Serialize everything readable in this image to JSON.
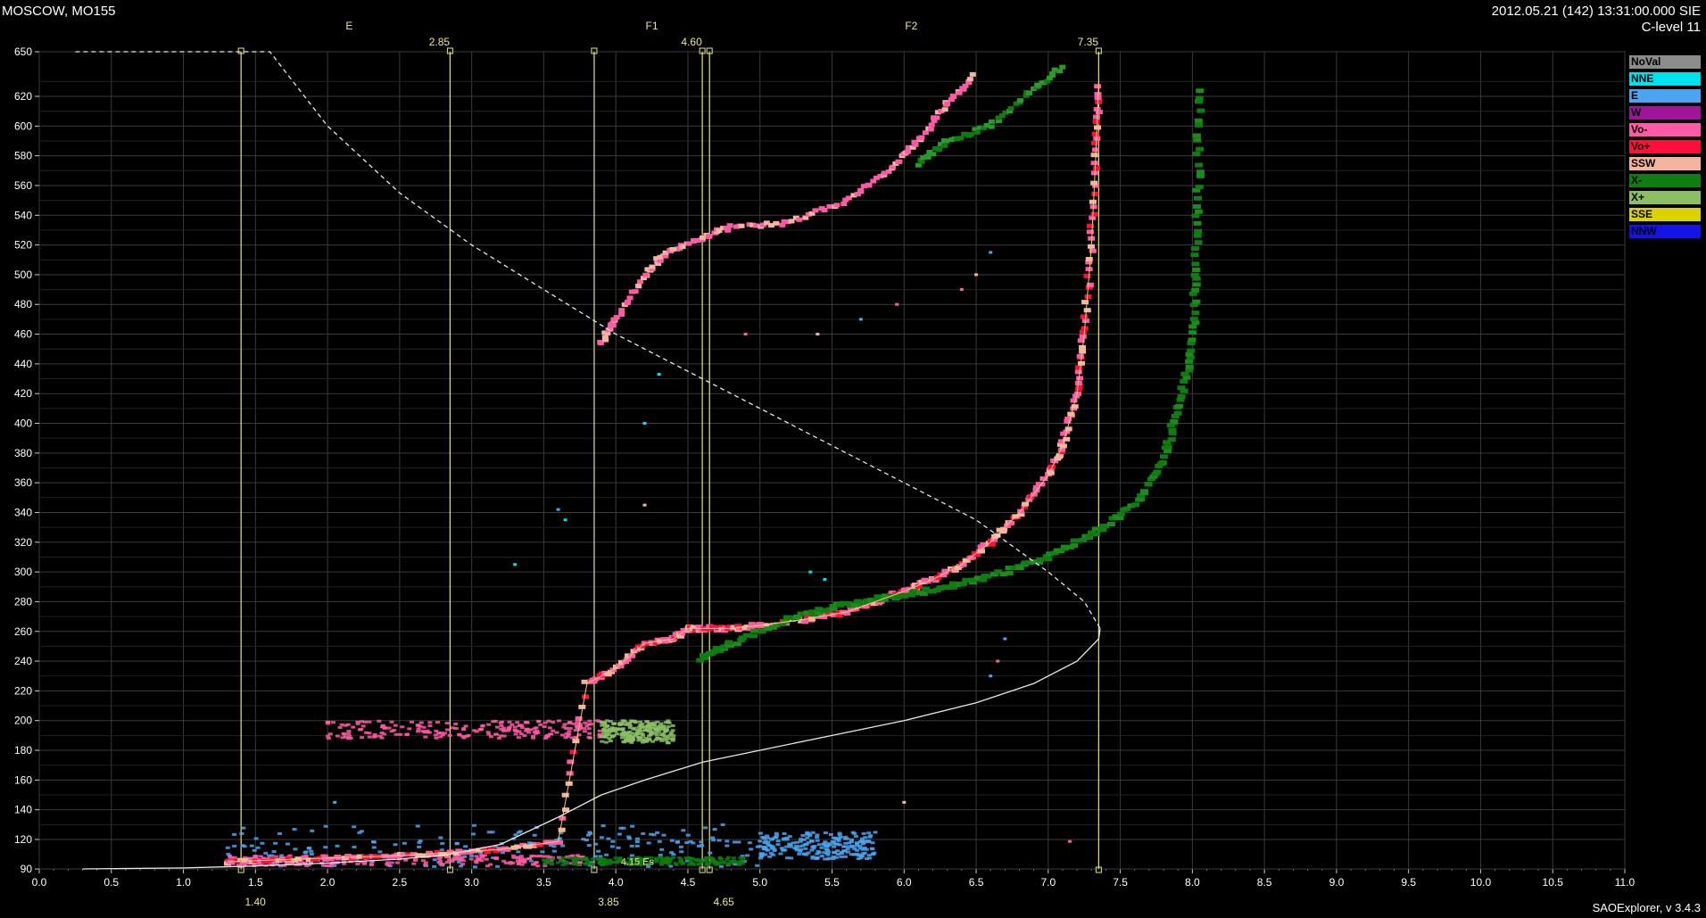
{
  "header": {
    "station": "MOSCOW, MO155",
    "datetime": "2012.05.21 (142) 13:31:00.000 SIE",
    "clevel": "C-level 11"
  },
  "footer": {
    "software": "SAOExplorer, v 3.4.3"
  },
  "legend": [
    {
      "label": "NoVal",
      "color": "#8c8c8c"
    },
    {
      "label": "NNE",
      "color": "#00e1f0"
    },
    {
      "label": "E",
      "color": "#4ba5f0"
    },
    {
      "label": "W",
      "color": "#a0149b"
    },
    {
      "label": "Vo-",
      "color": "#ff5aa5"
    },
    {
      "label": "Vo+",
      "color": "#ff0f3c"
    },
    {
      "label": "SSW",
      "color": "#f5b4a0"
    },
    {
      "label": "X-",
      "color": "#0f7d0f"
    },
    {
      "label": "X+",
      "color": "#8cbe64"
    },
    {
      "label": "SSE",
      "color": "#dcd200"
    },
    {
      "label": "NNW",
      "color": "#1414e6"
    }
  ],
  "chart_data": {
    "type": "scatter",
    "xlim": [
      0.0,
      11.0
    ],
    "ylim": [
      90,
      650
    ],
    "x_ticks": [
      "0.0",
      "0.5",
      "1.0",
      "1.5",
      "2.0",
      "2.5",
      "3.0",
      "3.5",
      "4.0",
      "4.5",
      "5.0",
      "5.5",
      "6.0",
      "6.5",
      "7.0",
      "7.5",
      "8.0",
      "8.5",
      "9.0",
      "9.5",
      "10.0",
      "10.5",
      "11.0"
    ],
    "y_ticks": [
      "90",
      "120",
      "140",
      "160",
      "180",
      "200",
      "220",
      "240",
      "260",
      "280",
      "300",
      "320",
      "340",
      "360",
      "380",
      "400",
      "420",
      "440",
      "460",
      "480",
      "500",
      "520",
      "540",
      "560",
      "580",
      "600",
      "620",
      "650"
    ],
    "grid": true,
    "layer_labels": [
      {
        "text": "E",
        "x": 2.15
      },
      {
        "text": "F1",
        "x": 4.25
      },
      {
        "text": "F2",
        "x": 6.05
      }
    ],
    "markers": [
      {
        "x": 1.4,
        "top_label": "",
        "bottom_label": "1.40"
      },
      {
        "x": 2.85,
        "top_label": "2.85",
        "bottom_label": ""
      },
      {
        "x": 3.85,
        "top_label": "",
        "bottom_label": "3.85"
      },
      {
        "x": 4.6,
        "top_label": "4.60",
        "bottom_label": ""
      },
      {
        "x": 4.65,
        "top_label": "",
        "bottom_label": "4.65"
      },
      {
        "x": 7.35,
        "top_label": "7.35",
        "bottom_label": ""
      }
    ],
    "es_label": {
      "text": "4.15  Es",
      "x": 4.15,
      "y": 94
    },
    "o_trace": [
      [
        1.3,
        97
      ],
      [
        1.6,
        99
      ],
      [
        2.0,
        101
      ],
      [
        2.4,
        103
      ],
      [
        2.8,
        106
      ],
      [
        3.2,
        110
      ],
      [
        3.6,
        118
      ],
      [
        3.8,
        225
      ],
      [
        4.0,
        235
      ],
      [
        4.2,
        252
      ],
      [
        4.4,
        255
      ],
      [
        4.5,
        262
      ],
      [
        4.6,
        262
      ],
      [
        4.8,
        262
      ],
      [
        5.0,
        264
      ],
      [
        5.3,
        268
      ],
      [
        5.6,
        273
      ],
      [
        5.8,
        280
      ],
      [
        6.0,
        287
      ],
      [
        6.2,
        295
      ],
      [
        6.4,
        305
      ],
      [
        6.6,
        320
      ],
      [
        6.8,
        340
      ],
      [
        7.0,
        365
      ],
      [
        7.1,
        385
      ],
      [
        7.2,
        420
      ],
      [
        7.25,
        460
      ],
      [
        7.3,
        520
      ],
      [
        7.33,
        580
      ],
      [
        7.35,
        630
      ]
    ],
    "x_trace": [
      [
        4.6,
        242
      ],
      [
        4.8,
        252
      ],
      [
        5.2,
        268
      ],
      [
        5.5,
        276
      ],
      [
        5.8,
        282
      ],
      [
        6.1,
        286
      ],
      [
        6.4,
        292
      ],
      [
        6.7,
        300
      ],
      [
        7.0,
        310
      ],
      [
        7.3,
        325
      ],
      [
        7.6,
        345
      ],
      [
        7.8,
        375
      ],
      [
        7.9,
        410
      ],
      [
        8.0,
        450
      ],
      [
        8.02,
        500
      ],
      [
        8.04,
        560
      ],
      [
        8.05,
        630
      ]
    ],
    "high_o_trace": [
      [
        3.9,
        455
      ],
      [
        4.0,
        470
      ],
      [
        4.2,
        500
      ],
      [
        4.35,
        515
      ],
      [
        4.6,
        525
      ],
      [
        4.8,
        532
      ],
      [
        5.2,
        535
      ],
      [
        5.6,
        550
      ],
      [
        5.9,
        570
      ],
      [
        6.1,
        590
      ],
      [
        6.3,
        615
      ],
      [
        6.5,
        635
      ]
    ],
    "high_x_trace": [
      [
        6.1,
        575
      ],
      [
        6.3,
        590
      ],
      [
        6.6,
        600
      ],
      [
        6.9,
        625
      ],
      [
        7.1,
        640
      ]
    ],
    "es_blobs": [
      {
        "x": [
          2.0,
          3.9
        ],
        "y": [
          188,
          200
        ],
        "color": "#ff5aa5"
      },
      {
        "x": [
          1.3,
          5.0
        ],
        "y": [
          92,
          130
        ],
        "color": "#4ba5f0"
      },
      {
        "x": [
          5.0,
          5.8
        ],
        "y": [
          100,
          125
        ],
        "color": "#4ba5f0"
      },
      {
        "x": [
          1.3,
          3.8
        ],
        "y": [
          93,
          104
        ],
        "color": "#ff5aa5"
      },
      {
        "x": [
          3.5,
          4.9
        ],
        "y": [
          94,
          102
        ],
        "color": "#0f7d0f"
      },
      {
        "x": [
          3.9,
          4.4
        ],
        "y": [
          185,
          200
        ],
        "color": "#8cbe64"
      }
    ],
    "scattered": [
      {
        "x": 3.6,
        "y": 342
      },
      {
        "x": 3.65,
        "y": 335
      },
      {
        "x": 3.3,
        "y": 305
      },
      {
        "x": 5.35,
        "y": 300
      },
      {
        "x": 5.45,
        "y": 295
      },
      {
        "x": 6.7,
        "y": 255
      },
      {
        "x": 6.65,
        "y": 240
      },
      {
        "x": 6.6,
        "y": 230
      },
      {
        "x": 4.2,
        "y": 400
      },
      {
        "x": 4.3,
        "y": 433
      },
      {
        "x": 4.2,
        "y": 345
      },
      {
        "x": 6.4,
        "y": 490
      },
      {
        "x": 6.5,
        "y": 500
      },
      {
        "x": 5.4,
        "y": 460
      },
      {
        "x": 5.7,
        "y": 470
      },
      {
        "x": 4.9,
        "y": 460
      },
      {
        "x": 5.95,
        "y": 480
      },
      {
        "x": 2.05,
        "y": 145
      },
      {
        "x": 6.6,
        "y": 515
      },
      {
        "x": 6.0,
        "y": 145
      },
      {
        "x": 7.15,
        "y": 118
      }
    ],
    "model_profile": [
      [
        0.3,
        90
      ],
      [
        1.0,
        91
      ],
      [
        1.5,
        93
      ],
      [
        2.0,
        96
      ],
      [
        2.5,
        100
      ],
      [
        2.85,
        105
      ],
      [
        3.2,
        115
      ],
      [
        3.6,
        135
      ],
      [
        3.9,
        150
      ],
      [
        4.2,
        160
      ],
      [
        4.6,
        172
      ],
      [
        5.0,
        180
      ],
      [
        5.5,
        190
      ],
      [
        6.0,
        200
      ],
      [
        6.5,
        212
      ],
      [
        6.9,
        225
      ],
      [
        7.2,
        240
      ],
      [
        7.35,
        255
      ],
      [
        7.36,
        262
      ]
    ],
    "model_profile_dashed": [
      [
        0.25,
        650
      ],
      [
        1.6,
        650
      ],
      [
        2.0,
        600
      ],
      [
        2.5,
        555
      ],
      [
        3.0,
        520
      ],
      [
        3.5,
        490
      ],
      [
        4.0,
        460
      ],
      [
        4.5,
        435
      ],
      [
        5.0,
        410
      ],
      [
        5.5,
        385
      ],
      [
        6.0,
        360
      ],
      [
        6.5,
        335
      ],
      [
        7.0,
        300
      ],
      [
        7.25,
        280
      ],
      [
        7.36,
        262
      ]
    ]
  }
}
